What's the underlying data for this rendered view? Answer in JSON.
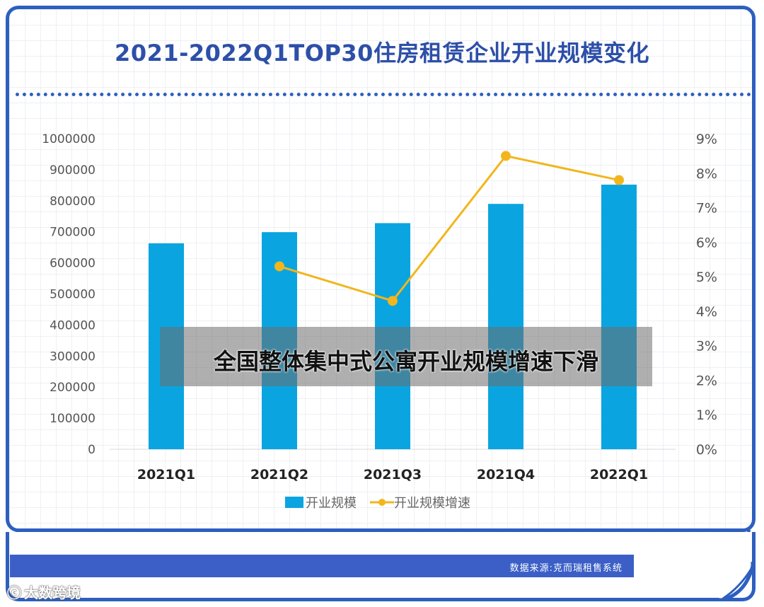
{
  "title": "2021-2022Q1TOP30住房租赁企业开业规模变化",
  "overlay_caption": "全国整体集中式公寓开业规模增速下滑",
  "source": "数据来源:克而瑞租售系统",
  "watermark": "大数跨境",
  "colors": {
    "frame": "#2d5fbf",
    "title": "#2d4fa8",
    "bar": "#0aa5e0",
    "line": "#f2b61c",
    "source_bar": "#3b5fc6"
  },
  "chart_data": {
    "type": "bar",
    "categories": [
      "2021Q1",
      "2021Q2",
      "2021Q3",
      "2021Q4",
      "2022Q1"
    ],
    "series": [
      {
        "name": "开业规模",
        "type": "bar",
        "axis": "left",
        "values": [
          663000,
          699000,
          728000,
          790000,
          852000
        ]
      },
      {
        "name": "开业规模增速",
        "type": "line",
        "axis": "right",
        "values": [
          null,
          5.3,
          4.3,
          8.5,
          7.8
        ]
      }
    ],
    "left_axis": {
      "min": 0,
      "max": 1000000,
      "ticks": [
        "0",
        "100000",
        "200000",
        "300000",
        "400000",
        "500000",
        "600000",
        "700000",
        "800000",
        "900000",
        "1000000"
      ]
    },
    "right_axis": {
      "min": 0,
      "max": 9,
      "ticks": [
        "0%",
        "1%",
        "2%",
        "3%",
        "4%",
        "5%",
        "6%",
        "7%",
        "8%",
        "9%"
      ]
    },
    "legend_position": "bottom-center"
  }
}
